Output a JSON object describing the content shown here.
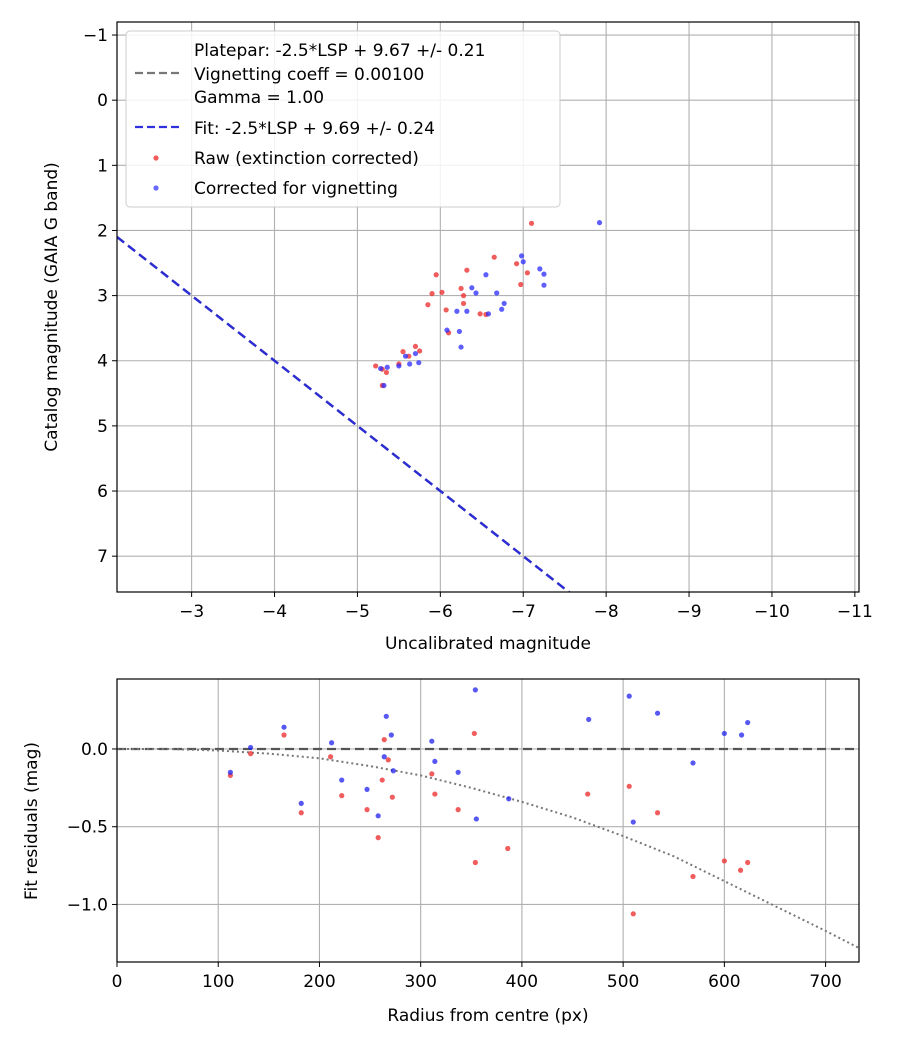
{
  "chart_data": [
    {
      "type": "scatter",
      "xlabel": "Uncalibrated magnitude",
      "ylabel": "Catalog magnitude (GAIA G band)",
      "xlim": [
        -2.1,
        -11.05
      ],
      "ylim": [
        7.55,
        -1.2
      ],
      "x_ticks": [
        -3,
        -4,
        -5,
        -6,
        -7,
        -8,
        -9,
        -10,
        -11
      ],
      "x_tick_labels": [
        "−3",
        "−4",
        "−5",
        "−6",
        "−7",
        "−8",
        "−9",
        "−10",
        "−11"
      ],
      "y_ticks": [
        -1,
        0,
        1,
        2,
        3,
        4,
        5,
        6,
        7
      ],
      "y_tick_labels": [
        "−1",
        "0",
        "1",
        "2",
        "3",
        "4",
        "5",
        "6",
        "7"
      ],
      "grid": true,
      "legend_placement": "top-left",
      "legend": [
        {
          "label": "Platepar: -2.5*LSP + 9.67 +/- 0.21",
          "style": "none"
        },
        {
          "label": "Vignetting coeff = 0.00100",
          "style": "gray-dashed"
        },
        {
          "label": "Gamma = 1.00",
          "style": "none"
        },
        {
          "label": "Fit: -2.5*LSP + 9.69 +/- 0.24",
          "style": "blue-dashed"
        },
        {
          "label": "Raw (extinction corrected)",
          "style": "red-dot"
        },
        {
          "label": "Corrected for vignetting",
          "style": "blue-dot"
        }
      ],
      "lines": [
        {
          "name": "Platepar",
          "slope": -1,
          "intercept": -0.001,
          "color": "#777777"
        },
        {
          "name": "Fit",
          "slope": -1,
          "intercept": 0.0,
          "color": "#2222dd"
        }
      ],
      "series": [
        {
          "name": "Raw (extinction corrected)",
          "color": "#ee3333",
          "x": [
            -5.22,
            -5.3,
            -5.35,
            -5.5,
            -5.55,
            -5.62,
            -5.7,
            -5.75,
            -5.85,
            -5.9,
            -5.95,
            -6.02,
            -6.07,
            -6.1,
            -6.25,
            -6.28,
            -6.32,
            -6.48,
            -6.55,
            -6.65,
            -6.92,
            -6.97,
            -7.05,
            -7.1,
            -5.3,
            -6.28
          ],
          "y": [
            4.08,
            4.13,
            4.18,
            4.05,
            3.86,
            3.93,
            3.78,
            3.85,
            3.14,
            2.97,
            2.68,
            2.95,
            3.22,
            3.57,
            2.89,
            3.12,
            2.61,
            3.28,
            3.29,
            2.41,
            2.51,
            2.83,
            2.65,
            1.89,
            4.38,
            3.0
          ]
        },
        {
          "name": "Corrected for vignetting",
          "color": "#2a2aff",
          "x": [
            -5.32,
            -5.36,
            -5.5,
            -5.58,
            -5.63,
            -5.7,
            -5.74,
            -6.08,
            -6.23,
            -6.25,
            -6.32,
            -6.38,
            -6.43,
            -6.55,
            -6.58,
            -6.68,
            -6.74,
            -6.77,
            -6.98,
            -7.0,
            -7.2,
            -7.25,
            -7.25,
            -7.92,
            -6.2,
            -5.28
          ],
          "y": [
            4.38,
            4.1,
            4.08,
            3.93,
            4.05,
            3.89,
            4.03,
            3.53,
            3.55,
            3.79,
            3.24,
            2.88,
            2.96,
            2.68,
            3.28,
            2.96,
            3.21,
            3.12,
            2.39,
            2.48,
            2.59,
            2.67,
            2.84,
            1.88,
            3.24,
            4.12
          ]
        }
      ]
    },
    {
      "type": "scatter",
      "xlabel": "Radius from centre (px)",
      "ylabel": "Fit residuals (mag)",
      "xlim": [
        0,
        733
      ],
      "ylim": [
        -1.37,
        0.45
      ],
      "x_ticks": [
        0,
        100,
        200,
        300,
        400,
        500,
        600,
        700
      ],
      "x_tick_labels": [
        "0",
        "100",
        "200",
        "300",
        "400",
        "500",
        "600",
        "700"
      ],
      "y_ticks": [
        0.0,
        -0.5,
        -1.0
      ],
      "y_tick_labels": [
        "0.0",
        "−0.5",
        "−1.0"
      ],
      "grid": true,
      "lines": [
        {
          "name": "Zero residual",
          "type": "horizontal",
          "y": 0.0,
          "color": "#555555"
        },
        {
          "name": "Vignetting curve",
          "type": "dotted-curve",
          "color": "#777777",
          "x": [
            0,
            50,
            100,
            150,
            200,
            250,
            300,
            350,
            400,
            450,
            500,
            550,
            600,
            650,
            700,
            733
          ],
          "y": [
            0.0,
            0.0,
            -0.01,
            -0.03,
            -0.06,
            -0.11,
            -0.17,
            -0.25,
            -0.34,
            -0.44,
            -0.56,
            -0.69,
            -0.85,
            -1.01,
            -1.17,
            -1.28
          ]
        }
      ],
      "series": [
        {
          "name": "Raw (extinction corrected)",
          "color": "#ee3333",
          "x": [
            112,
            132,
            165,
            182,
            211,
            222,
            247,
            258,
            262,
            264,
            268,
            272,
            311,
            314,
            337,
            353,
            354,
            386,
            465,
            506,
            510,
            534,
            569,
            600,
            616,
            623
          ],
          "y": [
            -0.17,
            -0.03,
            0.09,
            -0.41,
            -0.05,
            -0.3,
            -0.39,
            -0.57,
            -0.2,
            0.06,
            -0.07,
            -0.31,
            -0.16,
            -0.29,
            -0.39,
            0.1,
            -0.73,
            -0.64,
            -0.29,
            -0.24,
            -1.06,
            -0.41,
            -0.82,
            -0.72,
            -0.78,
            -0.73
          ]
        },
        {
          "name": "Corrected for vignetting",
          "color": "#1f1fee",
          "x": [
            112,
            132,
            165,
            182,
            212,
            222,
            247,
            258,
            264,
            266,
            271,
            273,
            311,
            314,
            337,
            354,
            355,
            387,
            466,
            506,
            510,
            534,
            569,
            600,
            617,
            623
          ],
          "y": [
            -0.15,
            0.01,
            0.14,
            -0.35,
            0.04,
            -0.2,
            -0.26,
            -0.43,
            -0.05,
            0.21,
            0.09,
            -0.14,
            0.05,
            -0.08,
            -0.15,
            0.38,
            -0.45,
            -0.32,
            0.19,
            0.34,
            -0.47,
            0.23,
            -0.09,
            0.1,
            0.09,
            0.17
          ]
        }
      ]
    }
  ]
}
